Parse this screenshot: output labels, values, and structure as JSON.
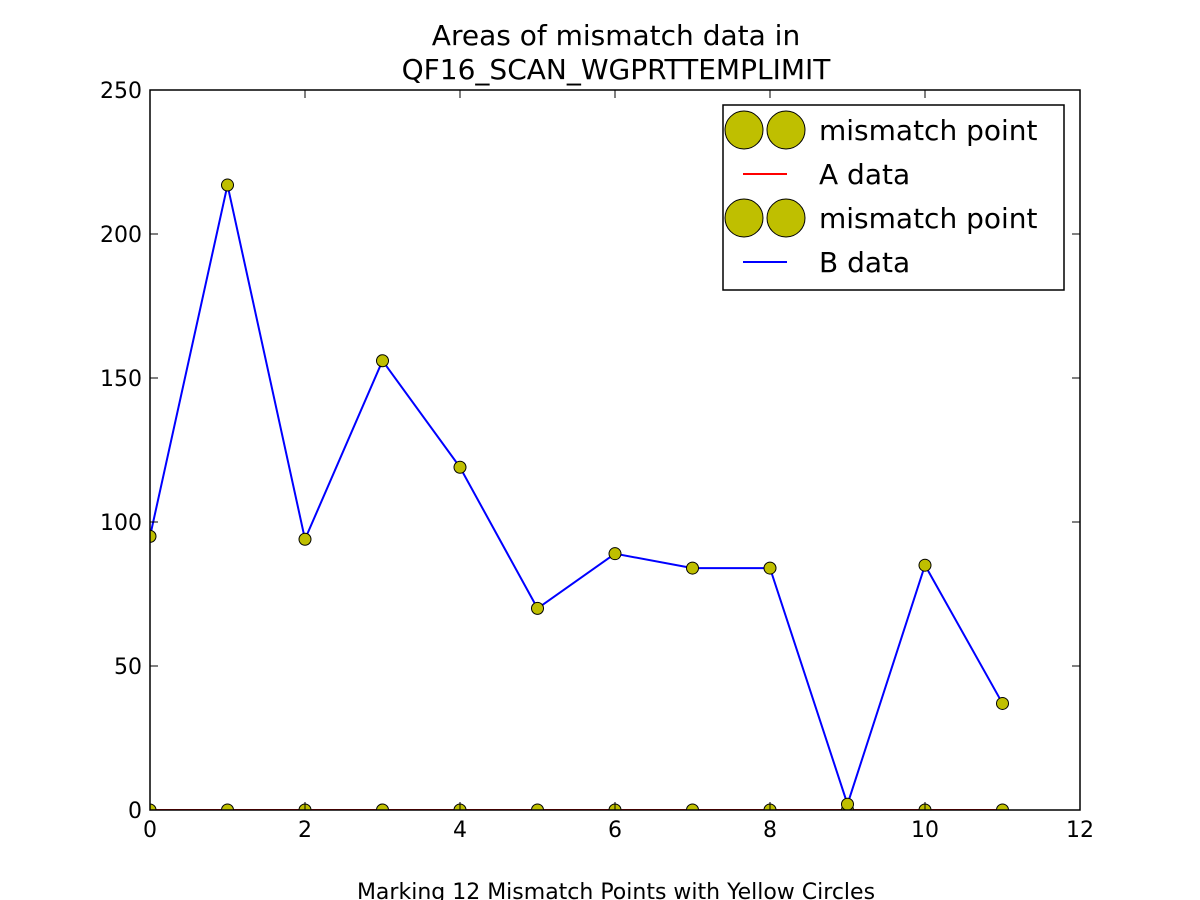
{
  "chart_data": {
    "type": "line",
    "title_lines": [
      "Areas of mismatch data in",
      "QF16_SCAN_WGPRTTEMPLIMIT"
    ],
    "xlabel": "Marking 12 Mismatch Points with Yellow Circles",
    "ylabel": "",
    "xlim": [
      0,
      12
    ],
    "ylim": [
      0,
      250
    ],
    "xticks": [
      0,
      2,
      4,
      6,
      8,
      10,
      12
    ],
    "yticks": [
      0,
      50,
      100,
      150,
      200,
      250
    ],
    "grid": false,
    "legend_position": "top-right",
    "x": [
      0,
      1,
      2,
      3,
      4,
      5,
      6,
      7,
      8,
      9,
      10,
      11
    ],
    "series": [
      {
        "name": "A data",
        "color": "#ff0000",
        "values": [
          0,
          0,
          0,
          0,
          0,
          0,
          0,
          0,
          0,
          0,
          0,
          0
        ],
        "mismatch_label": "mismatch point"
      },
      {
        "name": "B data",
        "color": "#0000ff",
        "values": [
          95,
          217,
          94,
          156,
          119,
          70,
          89,
          84,
          84,
          2,
          85,
          37
        ],
        "mismatch_label": "mismatch point"
      }
    ],
    "legend": [
      {
        "label": "mismatch point",
        "kind": "marker"
      },
      {
        "label": "A data",
        "kind": "line",
        "color": "#ff0000"
      },
      {
        "label": "mismatch point",
        "kind": "marker"
      },
      {
        "label": "B data",
        "kind": "line",
        "color": "#0000ff"
      }
    ],
    "marker_color": "#bfbf00",
    "marker_edge_color": "#000000"
  }
}
